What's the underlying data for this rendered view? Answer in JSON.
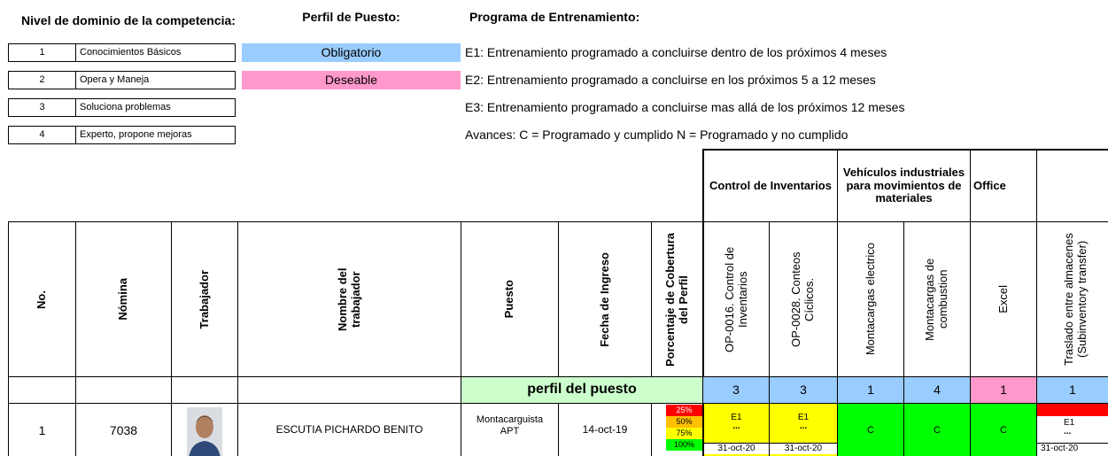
{
  "legend": {
    "title": "Nivel de dominio de la competencia:",
    "levels": [
      {
        "level": 1,
        "label": "Conocimientos Básicos"
      },
      {
        "level": 2,
        "label": "Opera y Maneja"
      },
      {
        "level": 3,
        "label": "Soluciona problemas"
      },
      {
        "level": 4,
        "label": "Experto, propone mejoras"
      }
    ]
  },
  "profile": {
    "title": "Perfil de Puesto:",
    "items": [
      "Obligatorio",
      "Deseable"
    ]
  },
  "program": {
    "title": "Programa de Entrenamiento:",
    "lines": [
      "E1: Entrenamiento programado a concluirse dentro de los próximos 4 meses",
      "E2: Entrenamiento programado a concluirse en los próximos 5 a 12 meses",
      "E3:  Entrenamiento programado a concluirse mas allá de los próximos 12 meses",
      "Avances: C = Programado y cumplido  N = Programado y no cumplido"
    ]
  },
  "table": {
    "groups": [
      "Control de Inventarios",
      "Vehículos industriales para movimientos de materiales",
      "Office"
    ],
    "headers": [
      "No.",
      "Nómina",
      "Trabajador",
      "Nombre del trabajador",
      "Puesto",
      "Fecha de Ingreso",
      "Porcentaje de Cobertura del Perfil",
      "OP-0016. Control de Inventarios",
      "OP-0028. Conteos Cíclicos.",
      "Montacargas electrico",
      "Montacargas de combustion",
      "Excel",
      "Traslado entre almacenes (Subinventory transfer)"
    ],
    "profile_row": {
      "label": "perfil del puesto",
      "values": [
        3,
        3,
        1,
        4,
        1,
        1
      ]
    },
    "rows": [
      {
        "no": 1,
        "nomina": 7038,
        "name": "ESCUTIA PICHARDO BENITO",
        "puesto": "Montacarguista APT",
        "fecha": "14-oct-19",
        "coverage": [
          "25%",
          "50%",
          "75%",
          "100%"
        ],
        "cells": [
          {
            "plan": "E1",
            "mark": "...",
            "date": "31-oct-20"
          },
          {
            "plan": "E1",
            "mark": "...",
            "date": "31-oct-20"
          },
          {
            "status": "C"
          },
          {
            "status": "C"
          },
          {
            "status": "C"
          },
          {
            "plan": "E1",
            "mark": "...",
            "date": "31-oct-20"
          }
        ]
      }
    ]
  }
}
